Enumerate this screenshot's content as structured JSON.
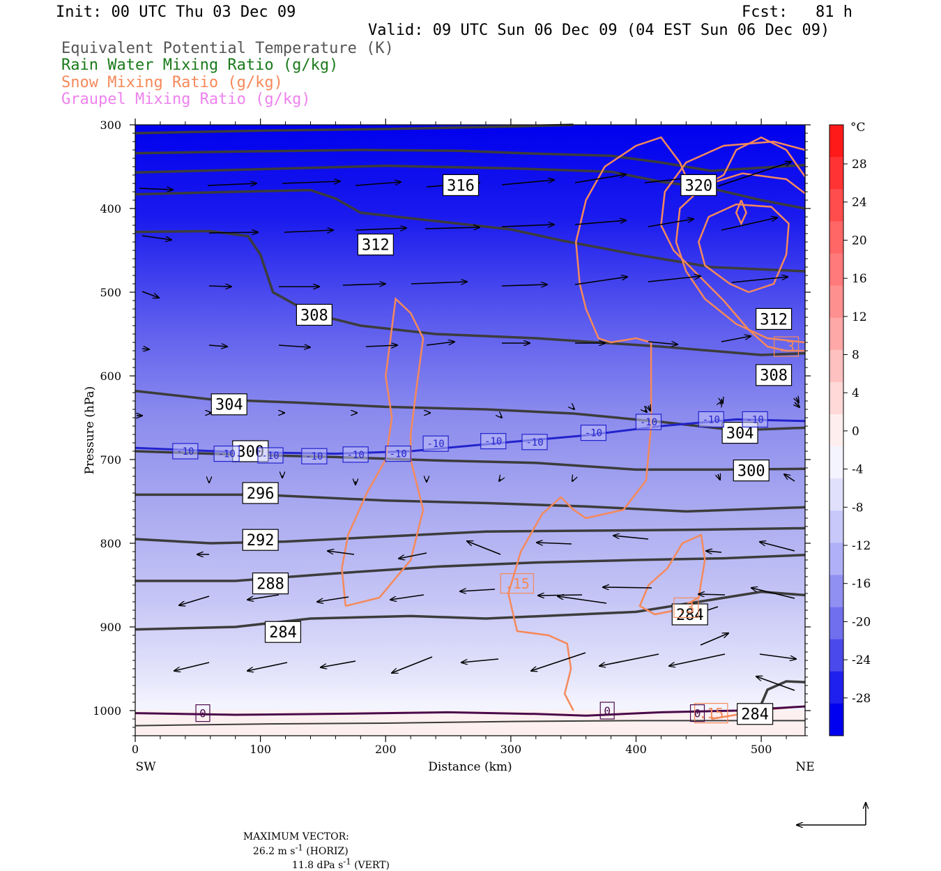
{
  "header": {
    "init": "Init: 00 UTC Thu 03 Dec 09",
    "fcst": "Fcst:   81 h",
    "valid": "Valid: 09 UTC Sun 06 Dec 09 (04 EST Sun 06 Dec 09)",
    "legend": [
      {
        "text": "Equivalent Potential Temperature (K)",
        "color": "#555555"
      },
      {
        "text": "Rain Water Mixing Ratio (g/kg)",
        "color": "#1a7a1a"
      },
      {
        "text": "Snow Mixing Ratio (g/kg)",
        "color": "#f5895a"
      },
      {
        "text": "Graupel Mixing Ratio (g/kg)",
        "color": "#ee82ee"
      }
    ]
  },
  "footer": {
    "max_vector_label": "MAXIMUM VECTOR:",
    "horiz": "26.2 m s",
    "horiz_sup": "-1",
    "horiz_tail": " (HORIZ)",
    "vert": "11.8 dPa s",
    "vert_sup": "-1",
    "vert_tail": " (VERT)"
  },
  "colorbar": {
    "unit": "°C",
    "labels": [
      "28",
      "24",
      "20",
      "16",
      "12",
      "8",
      "4",
      "0",
      "-4",
      "-8",
      "-12",
      "-16",
      "-20",
      "-24",
      "-28"
    ]
  },
  "chart_data": {
    "type": "cross-section",
    "xlabel": "Distance (km)",
    "ylabel": "Pressure (hPa)",
    "x_ticks": [
      0,
      100,
      200,
      300,
      400,
      500
    ],
    "y_ticks": [
      300,
      400,
      500,
      600,
      700,
      800,
      900,
      1000
    ],
    "xlim": [
      0,
      535
    ],
    "ylim": [
      1030,
      300
    ],
    "x_end_labels": {
      "left": "SW",
      "right": "NE"
    },
    "colors": {
      "theta_e": "#3c3c3c",
      "snow": "#f5895a",
      "freezing": "#2222cc",
      "zero_line": "#4a0a4a"
    },
    "theta_e_labels": [
      {
        "label": "316",
        "x": 260,
        "p": 372
      },
      {
        "label": "320",
        "x": 450,
        "p": 372
      },
      {
        "label": "312",
        "x": 192,
        "p": 443
      },
      {
        "label": "312",
        "x": 510,
        "p": 532
      },
      {
        "label": "308",
        "x": 143,
        "p": 527
      },
      {
        "label": "308",
        "x": 510,
        "p": 599
      },
      {
        "label": "304",
        "x": 75,
        "p": 634
      },
      {
        "label": "304",
        "x": 483,
        "p": 668
      },
      {
        "label": "300",
        "x": 92,
        "p": 690
      },
      {
        "label": "300",
        "x": 492,
        "p": 713
      },
      {
        "label": "296",
        "x": 100,
        "p": 740
      },
      {
        "label": "292",
        "x": 100,
        "p": 796
      },
      {
        "label": "288",
        "x": 108,
        "p": 848
      },
      {
        "label": "284",
        "x": 118,
        "p": 906
      },
      {
        "label": "284",
        "x": 443,
        "p": 885
      },
      {
        "label": "284",
        "x": 495,
        "p": 1004
      }
    ],
    "isotherm_labels": [
      {
        "label": "-10",
        "x": 40,
        "p": 690
      },
      {
        "label": "-10",
        "x": 73,
        "p": 693
      },
      {
        "label": "-10",
        "x": 108,
        "p": 695
      },
      {
        "label": "-10",
        "x": 143,
        "p": 696
      },
      {
        "label": "-10",
        "x": 176,
        "p": 694
      },
      {
        "label": "-10",
        "x": 210,
        "p": 693
      },
      {
        "label": "-10",
        "x": 240,
        "p": 681
      },
      {
        "label": "-10",
        "x": 286,
        "p": 678
      },
      {
        "label": "-10",
        "x": 319,
        "p": 679
      },
      {
        "label": "-10",
        "x": 366,
        "p": 668
      },
      {
        "label": "-10",
        "x": 410,
        "p": 655
      },
      {
        "label": "-10",
        "x": 460,
        "p": 652
      },
      {
        "label": "-10",
        "x": 495,
        "p": 652
      }
    ],
    "snow_labels": [
      {
        "label": ".15",
        "x": 305,
        "p": 848
      },
      {
        "label": ".3",
        "x": 520,
        "p": 565
      },
      {
        "label": ".3",
        "x": 440,
        "p": 877
      },
      {
        "label": ".15",
        "x": 460,
        "p": 1003
      }
    ],
    "zero_labels": [
      {
        "label": "0",
        "x": 54,
        "p": 1003
      },
      {
        "label": "0",
        "x": 377,
        "p": 1000
      },
      {
        "label": "0",
        "x": 449,
        "p": 1003
      }
    ],
    "max_vector": {
      "horiz_ms": 26.2,
      "vert_dPas": 11.8
    }
  }
}
